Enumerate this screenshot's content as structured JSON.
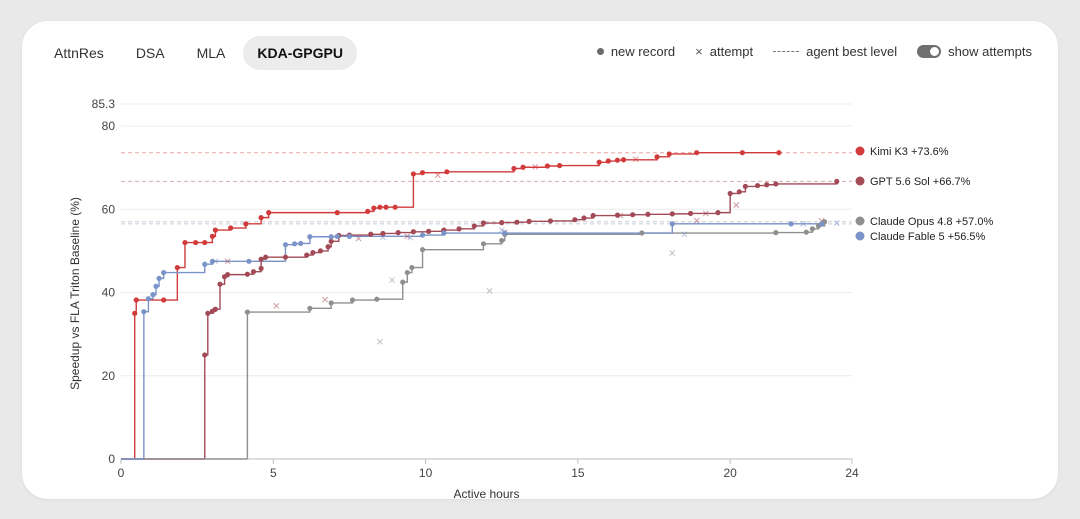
{
  "tabs": [
    {
      "label": "AttnRes",
      "active": false
    },
    {
      "label": "DSA",
      "active": false
    },
    {
      "label": "MLA",
      "active": false
    },
    {
      "label": "KDA-GPGPU",
      "active": true
    }
  ],
  "legend": {
    "new_record": "new record",
    "attempt": "attempt",
    "best_level": "agent best level",
    "show_attempts": "show attempts"
  },
  "chart_data": {
    "type": "line",
    "xlabel": "Active hours",
    "ylabel": "Speedup vs FLA Triton Baseline (%)",
    "xlim": [
      0,
      24
    ],
    "ylim": [
      0,
      85.3
    ],
    "xticks": [
      0,
      5,
      10,
      15,
      20,
      24
    ],
    "yticks": [
      0,
      20,
      40,
      60,
      80,
      85.3
    ],
    "grid": true,
    "series": [
      {
        "name": "Kimi K3",
        "label": "Kimi K3 +73.6%",
        "color": "#d13b3b",
        "best": 73.6,
        "records": [
          [
            0.45,
            35
          ],
          [
            0.5,
            38.2
          ],
          [
            1.4,
            38.2
          ],
          [
            1.85,
            46
          ],
          [
            2.1,
            52
          ],
          [
            2.45,
            52
          ],
          [
            2.75,
            52
          ],
          [
            3.0,
            53.5
          ],
          [
            3.1,
            55
          ],
          [
            3.6,
            55.5
          ],
          [
            4.1,
            56.5
          ],
          [
            4.6,
            58
          ],
          [
            4.85,
            59.2
          ],
          [
            7.1,
            59.2
          ],
          [
            8.1,
            59.5
          ],
          [
            8.3,
            60.3
          ],
          [
            8.5,
            60.5
          ],
          [
            8.7,
            60.5
          ],
          [
            9.0,
            60.5
          ],
          [
            9.6,
            68.5
          ],
          [
            9.9,
            68.8
          ],
          [
            10.7,
            69
          ],
          [
            12.9,
            69.8
          ],
          [
            13.2,
            70.1
          ],
          [
            14.0,
            70.4
          ],
          [
            14.4,
            70.5
          ],
          [
            15.7,
            71.3
          ],
          [
            16.0,
            71.6
          ],
          [
            16.3,
            71.8
          ],
          [
            16.5,
            71.9
          ],
          [
            17.6,
            72.6
          ],
          [
            18.0,
            73.3
          ],
          [
            18.9,
            73.6
          ],
          [
            20.4,
            73.6
          ],
          [
            21.6,
            73.6
          ]
        ],
        "attempts": [
          [
            10.4,
            68.2
          ],
          [
            13.6,
            70.2
          ],
          [
            16.9,
            72
          ]
        ]
      },
      {
        "name": "GPT 5.6 Sol",
        "label": "GPT 5.6 Sol +66.7%",
        "color": "#a34a57",
        "best": 66.7,
        "records": [
          [
            2.75,
            25
          ],
          [
            2.85,
            35
          ],
          [
            3.0,
            35.5
          ],
          [
            3.1,
            36
          ],
          [
            3.25,
            42
          ],
          [
            3.4,
            43.8
          ],
          [
            3.5,
            44.3
          ],
          [
            4.15,
            44.4
          ],
          [
            4.35,
            45
          ],
          [
            4.6,
            45.8
          ],
          [
            4.6,
            48
          ],
          [
            4.75,
            48.5
          ],
          [
            5.4,
            48.5
          ],
          [
            6.1,
            49
          ],
          [
            6.3,
            49.6
          ],
          [
            6.55,
            50
          ],
          [
            6.8,
            51
          ],
          [
            6.9,
            52.3
          ],
          [
            7.15,
            53.7
          ],
          [
            7.5,
            53.8
          ],
          [
            8.2,
            54
          ],
          [
            8.6,
            54.2
          ],
          [
            9.1,
            54.4
          ],
          [
            9.6,
            54.6
          ],
          [
            10.1,
            54.7
          ],
          [
            10.6,
            55
          ],
          [
            11.1,
            55.3
          ],
          [
            11.6,
            56
          ],
          [
            11.9,
            56.7
          ],
          [
            12.5,
            56.8
          ],
          [
            13.0,
            56.9
          ],
          [
            13.4,
            57.1
          ],
          [
            14.1,
            57.2
          ],
          [
            14.9,
            57.5
          ],
          [
            15.2,
            57.9
          ],
          [
            15.5,
            58.5
          ],
          [
            16.3,
            58.6
          ],
          [
            16.8,
            58.7
          ],
          [
            17.3,
            58.8
          ],
          [
            18.1,
            58.9
          ],
          [
            18.7,
            59
          ],
          [
            19.6,
            59.2
          ],
          [
            20.0,
            63.8
          ],
          [
            20.3,
            64.2
          ],
          [
            20.5,
            65.5
          ],
          [
            20.9,
            65.7
          ],
          [
            21.2,
            65.9
          ],
          [
            21.5,
            66.1
          ],
          [
            23.5,
            66.7
          ]
        ],
        "attempts": [
          [
            3.5,
            47.5
          ],
          [
            5.1,
            36.8
          ],
          [
            6.7,
            38.3
          ],
          [
            7.8,
            53
          ],
          [
            9.4,
            53.5
          ],
          [
            12.6,
            54.5
          ],
          [
            16.4,
            58.5
          ],
          [
            18.9,
            57.3
          ],
          [
            19.2,
            59
          ],
          [
            20.2,
            61
          ],
          [
            23.0,
            57.2
          ]
        ]
      },
      {
        "name": "Claude Opus 4.8",
        "label": "Claude Opus 4.8 +57.0%",
        "color": "#8f8f8f",
        "best": 57.0,
        "records": [
          [
            4.15,
            35.3
          ],
          [
            6.2,
            36.2
          ],
          [
            6.9,
            37.5
          ],
          [
            7.6,
            38.2
          ],
          [
            8.4,
            38.4
          ],
          [
            9.25,
            42.5
          ],
          [
            9.4,
            44.8
          ],
          [
            9.55,
            46
          ],
          [
            9.9,
            50.3
          ],
          [
            11.9,
            51.7
          ],
          [
            12.5,
            52.5
          ],
          [
            12.6,
            54
          ],
          [
            17.1,
            54.3
          ],
          [
            21.5,
            54.4
          ],
          [
            22.5,
            54.5
          ],
          [
            22.7,
            55.3
          ],
          [
            22.9,
            56
          ],
          [
            23.1,
            57
          ]
        ],
        "attempts": [
          [
            8.5,
            28.2
          ],
          [
            8.9,
            43
          ],
          [
            12.1,
            40.4
          ],
          [
            18.1,
            49.5
          ]
        ]
      },
      {
        "name": "Claude Fable 5",
        "label": "Claude Fable 5 +56.5%",
        "color": "#7a93c8",
        "best": 56.5,
        "records": [
          [
            0.75,
            35.4
          ],
          [
            0.9,
            38.5
          ],
          [
            1.05,
            39.5
          ],
          [
            1.15,
            41.5
          ],
          [
            1.25,
            43.4
          ],
          [
            1.4,
            44.8
          ],
          [
            2.75,
            46.8
          ],
          [
            3.0,
            47.5
          ],
          [
            4.2,
            47.5
          ],
          [
            5.4,
            51.5
          ],
          [
            5.7,
            51.7
          ],
          [
            5.9,
            51.8
          ],
          [
            6.2,
            53.4
          ],
          [
            6.9,
            53.4
          ],
          [
            7.1,
            53.5
          ],
          [
            7.5,
            53.5
          ],
          [
            9.9,
            53.8
          ],
          [
            10.6,
            54.3
          ],
          [
            12.6,
            54.3
          ],
          [
            18.1,
            56.5
          ],
          [
            22.0,
            56.5
          ],
          [
            23.0,
            56.5
          ]
        ],
        "attempts": [
          [
            3.1,
            47.5
          ],
          [
            8.6,
            53.3
          ],
          [
            9.5,
            53.2
          ],
          [
            12.5,
            55
          ],
          [
            18.5,
            54
          ],
          [
            22.4,
            56.5
          ],
          [
            23.5,
            56.7
          ]
        ]
      }
    ]
  }
}
